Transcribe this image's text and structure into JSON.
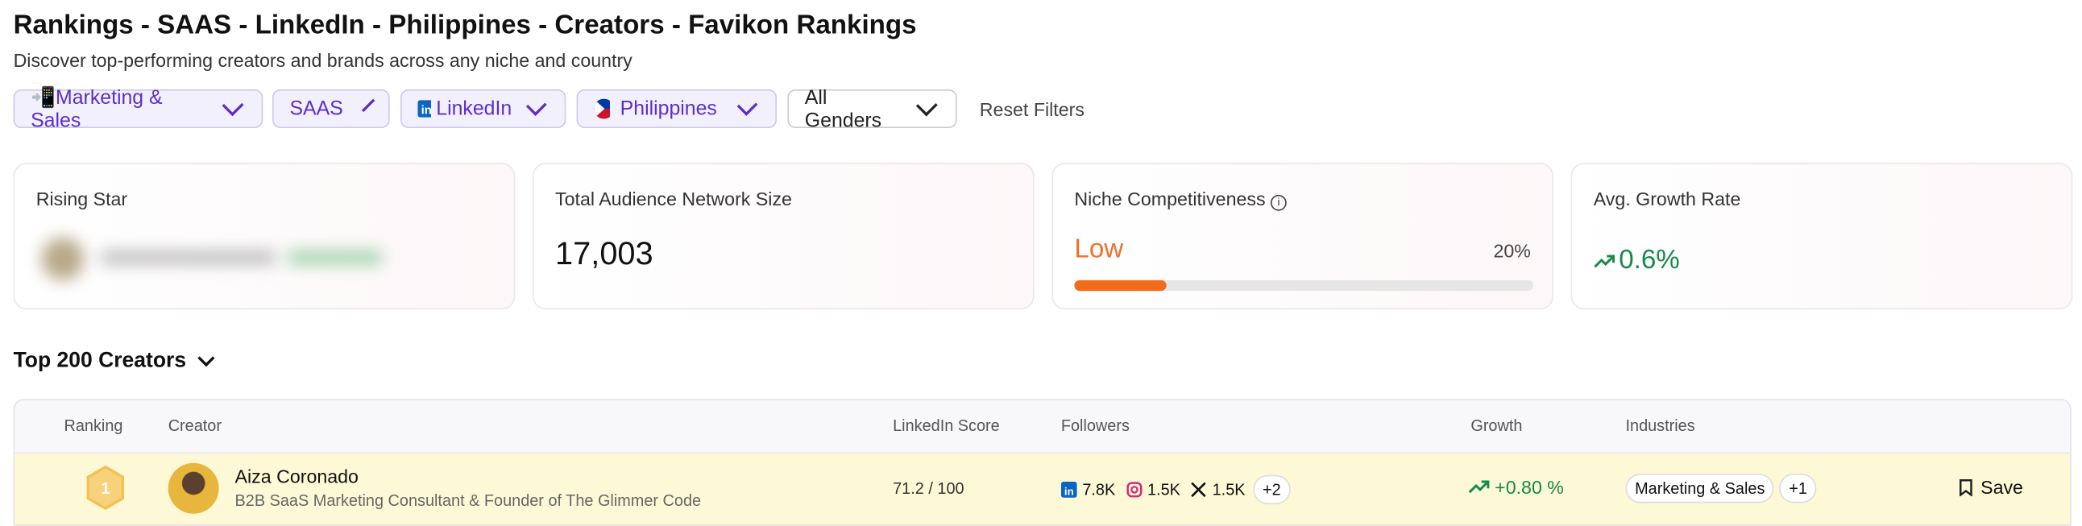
{
  "header": {
    "title": "Rankings - SAAS - LinkedIn - Philippines - Creators - Favikon Rankings",
    "subtitle": "Discover top-performing creators and brands across any niche and country"
  },
  "filters": [
    "📲Marketing & Sales",
    "SAAS",
    "LinkedIn",
    "Philippines",
    "All Genders"
  ],
  "reset": "Reset Filters",
  "cards": {
    "rising": {
      "label": "Rising Star"
    },
    "audience": {
      "label": "Total Audience Network Size",
      "value": "17,003"
    },
    "competitiveness": {
      "label": "Niche Competitiveness",
      "level": "Low",
      "percent": {
        "value": 20,
        "label": "20%"
      }
    },
    "growth": {
      "label": "Avg. Growth Rate",
      "value": "0.6%"
    }
  },
  "section": "Top 200 Creators",
  "table": {
    "headers": [
      "Ranking",
      "Creator",
      "LinkedIn Score",
      "Followers",
      "Growth",
      "Industries"
    ],
    "rows": [
      {
        "rank": "1",
        "name": "Aiza Coronado",
        "bio": "B2B SaaS Marketing Consultant & Founder of The Glimmer Code",
        "score": "71.2 / 100",
        "followers": [
          "7.8K",
          "1.5K",
          "1.5K"
        ],
        "more": "+2",
        "growth": "+0.80 %",
        "industry": "Marketing & Sales",
        "industry_more": "+1",
        "save": "Save"
      }
    ]
  }
}
